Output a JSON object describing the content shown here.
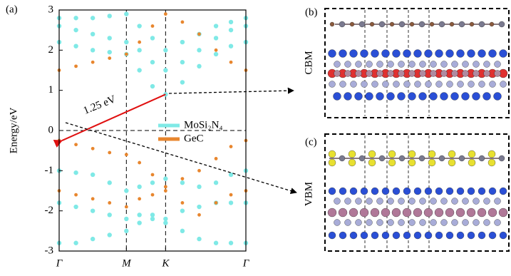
{
  "chart_data": {
    "type": "scatter",
    "panel_label": "(a)",
    "ylabel": "Energy/eV",
    "x": [
      0,
      0.09,
      0.18,
      0.27,
      0.36,
      0.43,
      0.5,
      0.57,
      0.66,
      0.75,
      0.84,
      0.92,
      1.0
    ],
    "xlim": [
      0,
      1
    ],
    "ylim": [
      -3,
      3
    ],
    "xticks": [
      {
        "value": 0,
        "label": "Γ"
      },
      {
        "value": 0.36,
        "label": "M"
      },
      {
        "value": 0.57,
        "label": "K"
      },
      {
        "value": 1.0,
        "label": "Γ"
      }
    ],
    "yticks": [
      -3,
      -2,
      -1,
      0,
      1,
      2,
      3
    ],
    "gap_label": "1.25 eV",
    "series": [
      {
        "name": "MoSi₂N₄",
        "color": "#7fe9e6",
        "bands": [
          [
            2.2,
            2.1,
            2.0,
            1.95,
            1.9,
            1.5,
            1.1,
            0.9,
            1.2,
            1.6,
            1.9,
            2.1,
            2.2
          ],
          [
            2.6,
            2.5,
            2.4,
            2.3,
            2.2,
            2.0,
            1.7,
            1.5,
            1.7,
            2.0,
            2.3,
            2.5,
            2.6
          ],
          [
            2.8,
            2.8,
            2.8,
            2.85,
            2.9,
            2.6,
            2.3,
            2.0,
            2.2,
            2.4,
            2.6,
            2.7,
            2.8
          ],
          [
            -1.0,
            -1.05,
            -1.1,
            -1.3,
            -1.5,
            -1.4,
            -1.3,
            -1.2,
            -1.3,
            -1.4,
            -1.3,
            -1.1,
            -1.0
          ],
          [
            -1.8,
            -1.9,
            -2.0,
            -2.1,
            -2.2,
            -2.1,
            -2.1,
            -2.2,
            -2.0,
            -1.9,
            -1.8,
            -1.8,
            -1.8
          ],
          [
            -2.8,
            -2.8,
            -2.7,
            -2.6,
            -2.5,
            -2.3,
            -2.2,
            -2.3,
            -2.5,
            -2.7,
            -2.8,
            -2.8,
            -2.8
          ]
        ]
      },
      {
        "name": "GeC",
        "color": "#e8862e",
        "bands": [
          [
            -0.25,
            -0.35,
            -0.45,
            -0.55,
            -0.6,
            -0.8,
            -1.1,
            -1.4,
            -1.2,
            -1.0,
            -0.7,
            -0.4,
            -0.25
          ],
          [
            -1.5,
            -1.6,
            -1.7,
            -1.8,
            -1.9,
            -1.7,
            -1.6,
            -1.5,
            -1.8,
            -2.1,
            -1.8,
            -1.6,
            -1.5
          ],
          [
            1.5,
            1.6,
            1.7,
            1.8,
            1.9,
            2.2,
            2.6,
            2.9,
            2.7,
            2.4,
            2.0,
            1.7,
            1.5
          ]
        ]
      }
    ]
  },
  "panels": [
    {
      "label": "(b)",
      "title": "CBM"
    },
    {
      "label": "(c)",
      "title": "VBM"
    }
  ]
}
